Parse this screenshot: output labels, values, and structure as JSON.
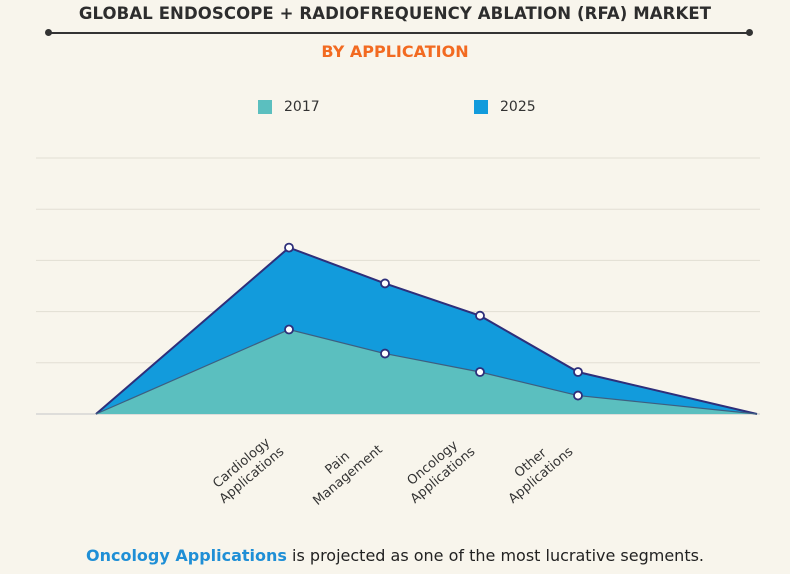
{
  "header": {
    "title": "GLOBAL ENDOSCOPE + RADIOFREQUENCY ABLATION (RFA) MARKET",
    "subtitle": "BY APPLICATION"
  },
  "colors": {
    "series_2017": "#5bbfbf",
    "series_2025": "#129bdc",
    "outline": "#2e2f7a",
    "subtitle": "#f26a21",
    "highlight": "#1f8fd6"
  },
  "chart_data": {
    "type": "area",
    "categories": [
      "",
      "Cardiology Applications",
      "Pain Management",
      "Oncology Applications",
      "Other Applications",
      ""
    ],
    "series": [
      {
        "name": "2017",
        "values": [
          0,
          1.65,
          1.18,
          0.82,
          0.36,
          0
        ]
      },
      {
        "name": "2025",
        "values": [
          0,
          3.25,
          2.55,
          1.92,
          0.82,
          0
        ]
      }
    ],
    "ylim": [
      0,
      5
    ],
    "grid": true,
    "legend": "top-center"
  },
  "footer": {
    "highlight": "Oncology Applications",
    "text": " is projected as one of the most lucrative segments."
  }
}
